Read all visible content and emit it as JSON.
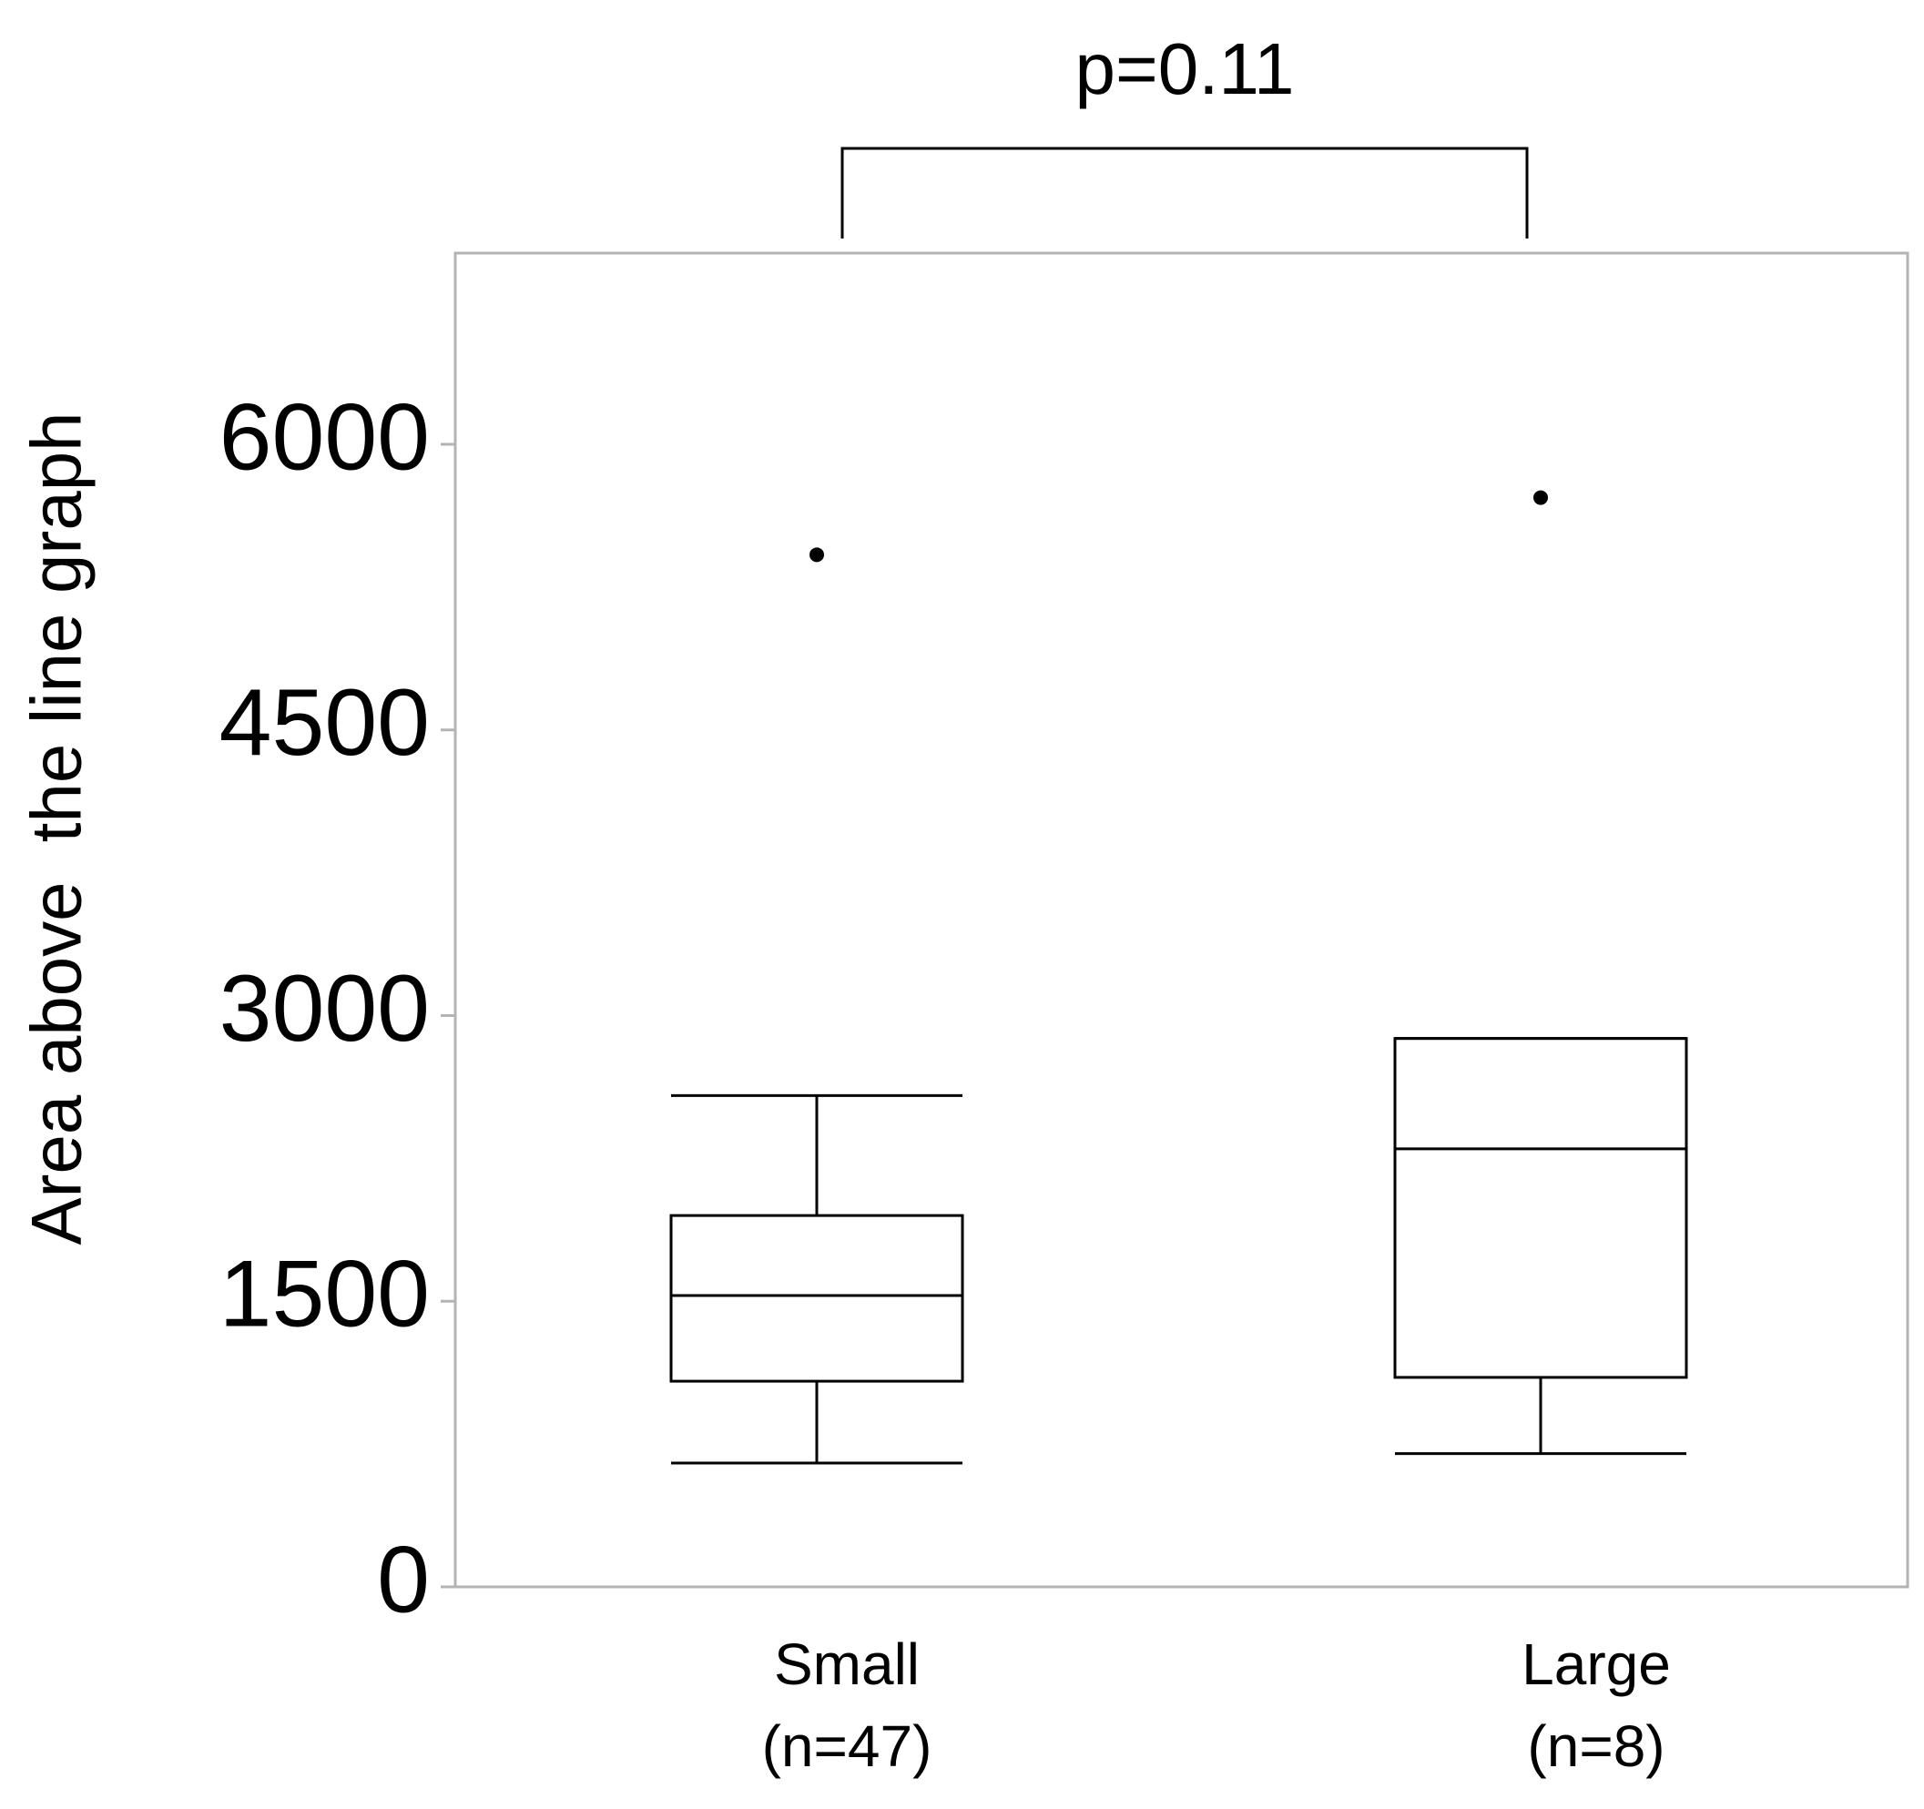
{
  "chart_data": {
    "type": "box",
    "title": "",
    "xlabel": "",
    "ylabel": "Area above  the line graph",
    "ylim": [
      0,
      7000
    ],
    "yticks": [
      0,
      1500,
      3000,
      4500,
      6000
    ],
    "ytick_labels": [
      "0",
      "1500",
      "3000",
      "4500",
      "6000"
    ],
    "grid": false,
    "legend": "none",
    "categories": [
      {
        "label": "Small",
        "n_label": "(n=47)"
      },
      {
        "label": "Large",
        "n_label": "(n=8)"
      }
    ],
    "boxes": [
      {
        "category": "Small",
        "whisker_low": 650,
        "q1": 1080,
        "median": 1530,
        "q3": 1950,
        "whisker_high": 2580,
        "outliers": [
          5420
        ]
      },
      {
        "category": "Large",
        "whisker_low": 700,
        "q1": 1100,
        "median": 2300,
        "q3": 2880,
        "whisker_high": 2880,
        "outliers": [
          5720
        ]
      }
    ],
    "annotations": [
      {
        "type": "significance_bracket",
        "between": [
          "Small",
          "Large"
        ],
        "text": "p=0.11"
      }
    ]
  }
}
